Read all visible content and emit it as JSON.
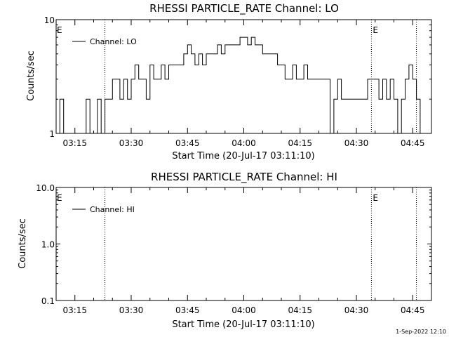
{
  "stamp": "1-Sep-2022 12:10",
  "chart_data": [
    {
      "type": "line",
      "title": "RHESSI PARTICLE_RATE Channel: LO",
      "xlabel": "Start Time (20-Jul-17 03:11:10)",
      "ylabel": "Counts/sec",
      "yscale": "log",
      "ylim": [
        1,
        10
      ],
      "yticks": [
        1,
        10
      ],
      "ytick_labels": [
        "1",
        "10"
      ],
      "xlim": [
        "03:10",
        "04:50"
      ],
      "xticks": [
        "03:15",
        "03:30",
        "03:45",
        "04:00",
        "04:15",
        "04:30",
        "04:45"
      ],
      "legend": "top-left",
      "series": [
        {
          "name": "Channel: LO",
          "color": "#000000",
          "x": [
            "03:10",
            "03:11",
            "03:12",
            "03:13",
            "03:15",
            "03:16",
            "03:17",
            "03:18",
            "03:19",
            "03:20",
            "03:21",
            "03:22",
            "03:23",
            "03:24",
            "03:25",
            "03:26",
            "03:27",
            "03:28",
            "03:29",
            "03:30",
            "03:31",
            "03:32",
            "03:33",
            "03:34",
            "03:35",
            "03:36",
            "03:37",
            "03:38",
            "03:39",
            "03:40",
            "03:41",
            "03:42",
            "03:43",
            "03:44",
            "03:45",
            "03:46",
            "03:47",
            "03:48",
            "03:49",
            "03:50",
            "03:51",
            "03:52",
            "03:53",
            "03:54",
            "03:55",
            "03:56",
            "03:57",
            "03:58",
            "03:59",
            "04:00",
            "04:01",
            "04:02",
            "04:03",
            "04:04",
            "04:05",
            "04:06",
            "04:07",
            "04:08",
            "04:09",
            "04:10",
            "04:11",
            "04:12",
            "04:13",
            "04:14",
            "04:15",
            "04:16",
            "04:17",
            "04:18",
            "04:19",
            "04:20",
            "04:21",
            "04:22",
            "04:23",
            "04:24",
            "04:25",
            "04:26",
            "04:27",
            "04:28",
            "04:29",
            "04:30",
            "04:31",
            "04:32",
            "04:33",
            "04:34",
            "04:35",
            "04:36",
            "04:37",
            "04:38",
            "04:39",
            "04:40",
            "04:41",
            "04:42",
            "04:43",
            "04:44",
            "04:45",
            "04:46",
            "04:47"
          ],
          "y": [
            1,
            2,
            1,
            1,
            1,
            1,
            1,
            2,
            1,
            1,
            2,
            1,
            2,
            2,
            3,
            3,
            2,
            3,
            2,
            3,
            4,
            3,
            3,
            2,
            4,
            3,
            3,
            4,
            3,
            4,
            4,
            4,
            4,
            5,
            6,
            5,
            4,
            5,
            4,
            5,
            5,
            5,
            6,
            5,
            6,
            6,
            6,
            6,
            7,
            7,
            6,
            7,
            6,
            6,
            5,
            5,
            5,
            5,
            4,
            4,
            3,
            3,
            4,
            3,
            3,
            4,
            3,
            3,
            3,
            3,
            3,
            3,
            1,
            2,
            3,
            2,
            2,
            2,
            2,
            2,
            2,
            2,
            3,
            3,
            3,
            2,
            3,
            2,
            3,
            2,
            1,
            2,
            3,
            4,
            3,
            2,
            1
          ]
        }
      ],
      "markers": [
        {
          "time": "03:23",
          "label": ""
        },
        {
          "time": "04:34",
          "label": "E"
        },
        {
          "time": "04:46",
          "label": ""
        }
      ],
      "edge_marker_label": "E"
    },
    {
      "type": "line",
      "title": "RHESSI PARTICLE_RATE Channel: HI",
      "xlabel": "Start Time (20-Jul-17 03:11:10)",
      "ylabel": "Counts/sec",
      "yscale": "log",
      "ylim": [
        0.1,
        10
      ],
      "yticks": [
        0.1,
        1,
        10
      ],
      "ytick_labels": [
        "0.1",
        "1.0",
        "10.0"
      ],
      "xlim": [
        "03:10",
        "04:50"
      ],
      "xticks": [
        "03:15",
        "03:30",
        "03:45",
        "04:00",
        "04:15",
        "04:30",
        "04:45"
      ],
      "legend": "top-left",
      "series": [
        {
          "name": "Channel: HI",
          "color": "#000000",
          "x": [],
          "y": []
        }
      ],
      "markers": [
        {
          "time": "03:23",
          "label": ""
        },
        {
          "time": "04:34",
          "label": "E"
        },
        {
          "time": "04:46",
          "label": ""
        }
      ],
      "edge_marker_label": "E"
    }
  ]
}
